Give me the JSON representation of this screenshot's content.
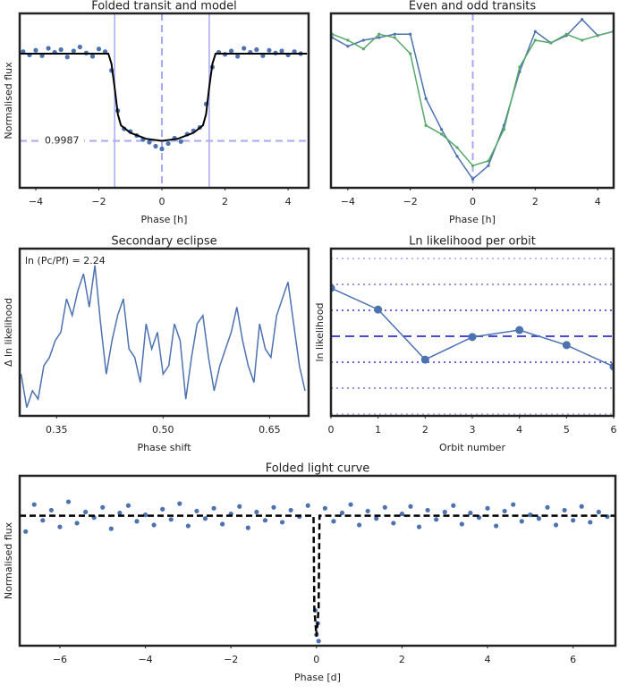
{
  "chart_data": [
    {
      "type": "scatter",
      "title": "Folded transit and model",
      "xlabel": "Phase [h]",
      "ylabel": "Normalised flux",
      "xlim": [
        -4.51,
        4.65
      ],
      "ylim": [
        0.998,
        1.0006
      ],
      "xticks": [
        {
          "value": -4,
          "label": "−4"
        },
        {
          "value": -2,
          "label": "−2"
        },
        0,
        2,
        4
      ],
      "transit_edges": [
        -1.5,
        1.5
      ],
      "center_line": 0,
      "depth_line": 0.9987,
      "series": [
        {
          "mode": "markers",
          "color": "#4c72b0",
          "x": [
            -4.4,
            -4.2,
            -4.0,
            -3.8,
            -3.6,
            -3.4,
            -3.2,
            -3.0,
            -2.8,
            -2.6,
            -2.4,
            -2.2,
            -2.0,
            -1.8,
            -1.6,
            -1.4,
            -1.2,
            -1.0,
            -0.8,
            -0.6,
            -0.4,
            -0.2,
            0.0,
            0.2,
            0.4,
            0.6,
            0.8,
            1.0,
            1.2,
            1.4,
            1.6,
            1.8,
            2.0,
            2.2,
            2.4,
            2.6,
            2.8,
            3.0,
            3.2,
            3.4,
            3.6,
            3.8,
            4.0,
            4.2,
            4.4
          ],
          "values": [
            1.00003,
            0.99998,
            1.00005,
            0.99997,
            1.00008,
            1.00002,
            1.00006,
            0.99995,
            1.00004,
            1.0001,
            1.00001,
            0.99996,
            1.00007,
            1.00003,
            0.99975,
            0.99915,
            0.99888,
            0.99884,
            0.99878,
            0.99872,
            0.99868,
            0.99862,
            0.99858,
            0.99866,
            0.99874,
            0.99869,
            0.9988,
            0.99885,
            0.9989,
            0.99925,
            0.9998,
            1.00002,
            0.99999,
            1.00004,
            0.99996,
            1.00008,
            1.00002,
            1.00006,
            0.99997,
            1.00005,
            1.00001,
            1.00004,
            0.99998,
            1.00003,
            1.0
          ]
        },
        {
          "mode": "lines",
          "color": "#000000",
          "x": [
            -4.5,
            -1.7,
            -1.6,
            -1.5,
            -1.4,
            -1.3,
            -1.0,
            -0.5,
            0,
            0.5,
            1.0,
            1.3,
            1.4,
            1.5,
            1.6,
            1.7,
            4.6
          ],
          "values": [
            1.0,
            1.0,
            0.99985,
            0.9995,
            0.9991,
            0.99893,
            0.99882,
            0.99873,
            0.9987,
            0.99873,
            0.99882,
            0.99893,
            0.9991,
            0.9995,
            0.99985,
            1.0,
            1.0
          ]
        }
      ]
    },
    {
      "type": "line",
      "title": "Even and odd transits",
      "xlabel": "Phase [h]",
      "xlim": [
        -4.54,
        4.51
      ],
      "ylim": [
        0.998,
        1.0006
      ],
      "xticks": [
        {
          "value": -4,
          "label": "−4"
        },
        {
          "value": -2,
          "label": "−2"
        },
        0,
        2,
        4
      ],
      "center_line": 0,
      "series": [
        {
          "mode": "lines+markers",
          "color": "#4c72b0",
          "x": [
            -4.5,
            -4.0,
            -3.5,
            -3.0,
            -2.5,
            -2.0,
            -1.5,
            -1.0,
            -0.5,
            0,
            0.5,
            1.0,
            1.5,
            2.0,
            2.5,
            3.0,
            3.5,
            4.0,
            4.5
          ],
          "values": [
            1.00024,
            1.00011,
            1.0002,
            1.00024,
            1.00029,
            1.00029,
            0.99933,
            0.99887,
            0.99847,
            0.99813,
            0.99833,
            0.99893,
            0.99973,
            1.00033,
            1.00016,
            1.00027,
            1.00051,
            1.00027,
            1.00033
          ]
        },
        {
          "mode": "lines+markers",
          "color": "#55a868",
          "x": [
            -4.5,
            -4.0,
            -3.5,
            -3.0,
            -2.5,
            -2.0,
            -1.5,
            -1.0,
            -0.5,
            0,
            0.5,
            1.0,
            1.5,
            2.0,
            2.5,
            3.0,
            3.5,
            4.0,
            4.5
          ],
          "values": [
            1.00029,
            1.0002,
            1.00007,
            1.00029,
            1.00024,
            1.0,
            0.99893,
            0.9988,
            0.9986,
            0.99833,
            0.9984,
            0.99887,
            0.9998,
            1.0002,
            1.00016,
            1.00029,
            1.0002,
            1.00027,
            1.00033
          ]
        }
      ]
    },
    {
      "type": "line",
      "title": "Secondary eclipse",
      "xlabel": "Phase shift",
      "ylabel": "Δ ln likelihood",
      "annotation": "ln (Pc/Pf) = 2.24",
      "xlim": [
        0.298,
        0.705
      ],
      "ylim": [
        0,
        1
      ],
      "xticks": [
        0.35,
        {
          "value": 0.5,
          "label": "0.50"
        },
        0.65
      ],
      "series": [
        {
          "mode": "lines",
          "color": "#4c72b0",
          "x": [
            0.3,
            0.308,
            0.316,
            0.324,
            0.332,
            0.34,
            0.348,
            0.356,
            0.364,
            0.372,
            0.38,
            0.388,
            0.396,
            0.404,
            0.412,
            0.42,
            0.428,
            0.436,
            0.444,
            0.452,
            0.46,
            0.468,
            0.476,
            0.484,
            0.492,
            0.5,
            0.508,
            0.516,
            0.524,
            0.532,
            0.54,
            0.548,
            0.556,
            0.564,
            0.572,
            0.58,
            0.588,
            0.596,
            0.604,
            0.612,
            0.62,
            0.628,
            0.636,
            0.644,
            0.652,
            0.66,
            0.668,
            0.676,
            0.684,
            0.692,
            0.7
          ],
          "values": [
            0.25,
            0.05,
            0.15,
            0.1,
            0.3,
            0.35,
            0.45,
            0.5,
            0.7,
            0.6,
            0.75,
            0.85,
            0.65,
            0.9,
            0.55,
            0.25,
            0.45,
            0.6,
            0.7,
            0.4,
            0.35,
            0.2,
            0.55,
            0.4,
            0.5,
            0.25,
            0.3,
            0.55,
            0.45,
            0.1,
            0.35,
            0.55,
            0.6,
            0.35,
            0.15,
            0.3,
            0.4,
            0.5,
            0.65,
            0.45,
            0.3,
            0.2,
            0.55,
            0.4,
            0.35,
            0.6,
            0.7,
            0.8,
            0.55,
            0.3,
            0.15
          ]
        }
      ]
    },
    {
      "type": "line",
      "title": "Ln likelihood per orbit",
      "xlabel": "Orbit number",
      "ylabel": "ln likelihood",
      "xlim": [
        0,
        6
      ],
      "ylim": [
        -3.07,
        3.38
      ],
      "xticks": [
        0,
        1,
        2,
        3,
        4,
        5,
        6
      ],
      "levels": [
        -3,
        -2,
        -1,
        1,
        2,
        3
      ],
      "mean_line": 0,
      "series": [
        {
          "mode": "lines+bigmarkers",
          "color": "#4c72b0",
          "x": [
            0,
            1,
            2,
            3,
            4,
            5,
            6
          ],
          "values": [
            1.86,
            1.03,
            -0.9,
            -0.03,
            0.24,
            -0.34,
            -1.17
          ]
        }
      ]
    },
    {
      "type": "scatter",
      "title": "Folded light curve",
      "xlabel": "Phase [d]",
      "ylabel": "Normalised flux",
      "xlim": [
        -6.94,
        6.99
      ],
      "ylim": [
        0.9986,
        1.00043
      ],
      "xticks": [
        {
          "value": -6,
          "label": "−6"
        },
        {
          "value": -4,
          "label": "−4"
        },
        {
          "value": -2,
          "label": "−2"
        },
        0,
        2,
        4,
        6
      ],
      "series": [
        {
          "mode": "markers",
          "color": "#4c72b0",
          "x": [
            -6.8,
            -6.6,
            -6.4,
            -6.2,
            -6.0,
            -5.8,
            -5.6,
            -5.4,
            -5.2,
            -5.0,
            -4.8,
            -4.6,
            -4.4,
            -4.2,
            -4.0,
            -3.8,
            -3.6,
            -3.4,
            -3.2,
            -3.0,
            -2.8,
            -2.6,
            -2.4,
            -2.2,
            -2.0,
            -1.8,
            -1.6,
            -1.4,
            -1.2,
            -1.0,
            -0.8,
            -0.6,
            -0.4,
            -0.2,
            0.0,
            0.2,
            0.4,
            0.6,
            0.8,
            1.0,
            1.2,
            1.4,
            1.6,
            1.8,
            2.0,
            2.2,
            2.4,
            2.6,
            2.8,
            3.0,
            3.2,
            3.4,
            3.6,
            3.8,
            4.0,
            4.2,
            4.4,
            4.6,
            4.8,
            5.0,
            5.2,
            5.4,
            5.6,
            5.8,
            6.0,
            6.2,
            6.4,
            6.6,
            6.8,
            0.03,
            -0.03,
            0.05
          ],
          "values": [
            0.99983,
            1.00012,
            0.99995,
            1.00006,
            0.99988,
            1.00015,
            0.99992,
            1.00004,
            0.99998,
            1.00009,
            0.99986,
            1.00003,
            1.00011,
            0.99994,
            1.00001,
            0.9999,
            1.00007,
            0.99996,
            1.00013,
            0.99989,
            1.00005,
            0.99997,
            1.00008,
            0.99991,
            1.00002,
            1.0001,
            0.99987,
            1.00004,
            0.99995,
            1.00009,
            0.99993,
            1.00006,
            0.99999,
            1.00011,
            0.99872,
            1.00008,
            0.99994,
            1.00003,
            1.00012,
            0.9999,
            1.00005,
            0.99997,
            1.00009,
            0.99992,
            1.00002,
            1.0001,
            0.99988,
            1.00006,
            0.99996,
            1.00004,
            1.00011,
            0.99991,
            1.00003,
            0.99998,
            1.00008,
            0.99989,
            1.00005,
            1.00012,
            0.99994,
            1.00001,
            0.99997,
            1.00009,
            0.9999,
            1.00006,
            0.99995,
            1.0001,
            0.99993,
            1.00004,
            0.99999,
            0.99884,
            0.99898,
            0.99865
          ]
        },
        {
          "mode": "dashed",
          "color": "#000000",
          "x": [
            -6.94,
            -0.07,
            -0.05,
            0,
            0.05,
            0.07,
            6.99
          ],
          "values": [
            1.0,
            1.0,
            0.999,
            0.9987,
            0.999,
            1.0,
            1.0
          ]
        }
      ]
    }
  ]
}
